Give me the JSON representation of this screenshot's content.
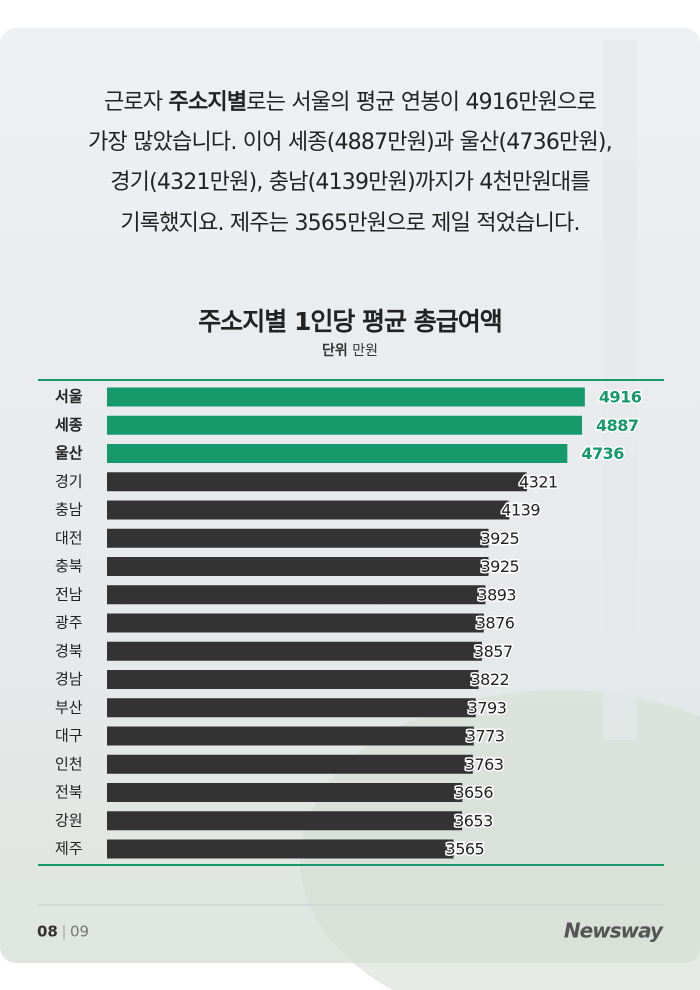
{
  "intro": [
    [
      "근로자 ",
      "주소지별",
      "로는 서울의 평균 연봉이 4916만원으로"
    ],
    [
      "가장 많았습니다. 이어 세종(4887만원)과 울산(4736만원),"
    ],
    [
      "경기(4321만원), 충남(4139만원)까지가 4천만원대를"
    ],
    [
      "기록했지요. 제주는 3565만원으로 제일 적었습니다."
    ]
  ],
  "chart_data": {
    "type": "hbar",
    "title": "주소지별 1인당 평균 총급여액",
    "unit_label": "단위",
    "unit": "만원",
    "categories": [
      "서울",
      "세종",
      "울산",
      "경기",
      "충남",
      "대전",
      "충북",
      "전남",
      "광주",
      "경북",
      "경남",
      "부산",
      "대구",
      "인천",
      "전북",
      "강원",
      "제주"
    ],
    "values": [
      4916,
      4887,
      4736,
      4321,
      4139,
      3925,
      3925,
      3893,
      3876,
      3857,
      3822,
      3793,
      3773,
      3763,
      3656,
      3653,
      3565
    ],
    "colors": [
      "#16996b",
      "#16996b",
      "#16996b",
      "#333333",
      "#333333",
      "#333333",
      "#333333",
      "#333333",
      "#333333",
      "#333333",
      "#333333",
      "#333333",
      "#333333",
      "#333333",
      "#333333",
      "#333333",
      "#333333"
    ],
    "highlight_color": "#16996b",
    "xlim": [
      0,
      5000
    ]
  },
  "footer": {
    "page": "08",
    "total": "09",
    "logo": "Newsway"
  }
}
